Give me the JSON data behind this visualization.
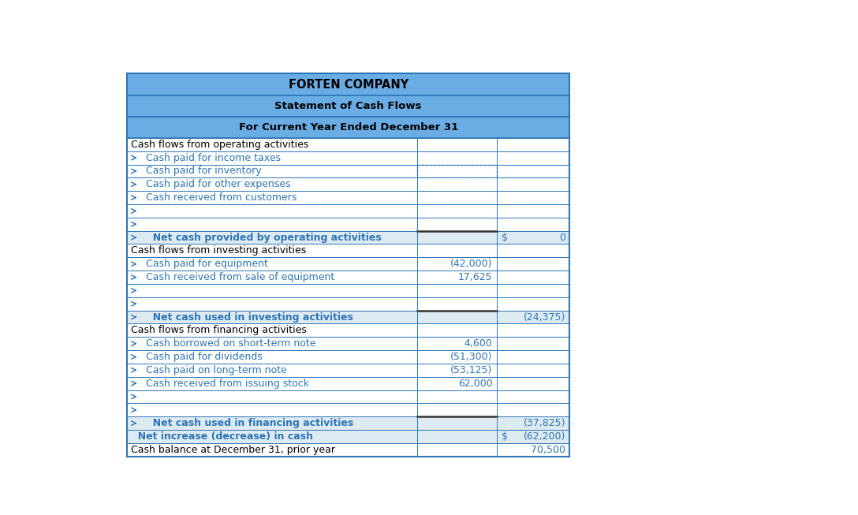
{
  "title1": "FORTEN COMPANY",
  "title2": "Statement of Cash Flows",
  "title3": "For Current Year Ended December 31",
  "header_bg": "#6aade4",
  "border_color": "#2e75b6",
  "text_blue": "#2e75b6",
  "text_dark": "#243f60",
  "rows": [
    {
      "label": "Cash flows from operating activities",
      "col2": "",
      "col3": "",
      "col3_dollar": "",
      "type": "section",
      "indent": 0
    },
    {
      "label": "Cash paid for income taxes",
      "col2": "",
      "col3": "",
      "col3_dollar": "",
      "type": "data_input",
      "indent": 1
    },
    {
      "label": "Cash paid for inventory",
      "col2": "",
      "col3": "",
      "col3_dollar": "",
      "type": "data_input_dotted",
      "indent": 1
    },
    {
      "label": "Cash paid for other expenses",
      "col2": "",
      "col3": "",
      "col3_dollar": "",
      "type": "data_input",
      "indent": 1
    },
    {
      "label": "Cash received from customers",
      "col2": "",
      "col3": "",
      "col3_dollar": "",
      "type": "data_input",
      "indent": 1
    },
    {
      "label": "",
      "col2": "",
      "col3": "",
      "col3_dollar": "",
      "type": "blank_input",
      "indent": 1
    },
    {
      "label": "",
      "col2": "",
      "col3": "",
      "col3_dollar": "",
      "type": "blank_thick",
      "indent": 1
    },
    {
      "label": "Net cash provided by operating activities",
      "col2": "",
      "col3": "0",
      "col3_dollar": "$",
      "type": "subtotal",
      "indent": 1
    },
    {
      "label": "Cash flows from investing activities",
      "col2": "",
      "col3": "",
      "col3_dollar": "",
      "type": "section",
      "indent": 0
    },
    {
      "label": "Cash paid for equipment",
      "col2": "(42,000)",
      "col3": "",
      "col3_dollar": "",
      "type": "data_input",
      "indent": 1
    },
    {
      "label": "Cash received from sale of equipment",
      "col2": "17,625",
      "col3": "",
      "col3_dollar": "",
      "type": "data_input",
      "indent": 1
    },
    {
      "label": "",
      "col2": "",
      "col3": "",
      "col3_dollar": "",
      "type": "blank_input",
      "indent": 1
    },
    {
      "label": "",
      "col2": "",
      "col3": "",
      "col3_dollar": "",
      "type": "blank_thick",
      "indent": 1
    },
    {
      "label": "Net cash used in investing activities",
      "col2": "",
      "col3": "(24,375)",
      "col3_dollar": "",
      "type": "subtotal",
      "indent": 1
    },
    {
      "label": "Cash flows from financing activities",
      "col2": "",
      "col3": "",
      "col3_dollar": "",
      "type": "section",
      "indent": 0
    },
    {
      "label": "Cash borrowed on short-term note",
      "col2": "4,600",
      "col3": "",
      "col3_dollar": "",
      "type": "data_input",
      "indent": 1
    },
    {
      "label": "Cash paid for dividends",
      "col2": "(51,300)",
      "col3": "",
      "col3_dollar": "",
      "type": "data_input",
      "indent": 1
    },
    {
      "label": "Cash paid on long-term note",
      "col2": "(53,125)",
      "col3": "",
      "col3_dollar": "",
      "type": "data_input",
      "indent": 1
    },
    {
      "label": "Cash received from issuing stock",
      "col2": "62,000",
      "col3": "",
      "col3_dollar": "",
      "type": "data_input",
      "indent": 1
    },
    {
      "label": "",
      "col2": "",
      "col3": "",
      "col3_dollar": "",
      "type": "blank_input",
      "indent": 1
    },
    {
      "label": "",
      "col2": "",
      "col3": "",
      "col3_dollar": "",
      "type": "blank_thick",
      "indent": 1
    },
    {
      "label": "Net cash used in financing activities",
      "col2": "",
      "col3": "(37,825)",
      "col3_dollar": "",
      "type": "subtotal",
      "indent": 1
    },
    {
      "label": "Net increase (decrease) in cash",
      "col2": "",
      "col3": "(62,200)",
      "col3_dollar": "$",
      "type": "total",
      "indent": 0
    },
    {
      "label": "Cash balance at December 31, prior year",
      "col2": "",
      "col3": "70,500",
      "col3_dollar": "",
      "type": "last",
      "indent": 0
    }
  ],
  "figsize": [
    10.88,
    6.53
  ],
  "dpi": 100
}
